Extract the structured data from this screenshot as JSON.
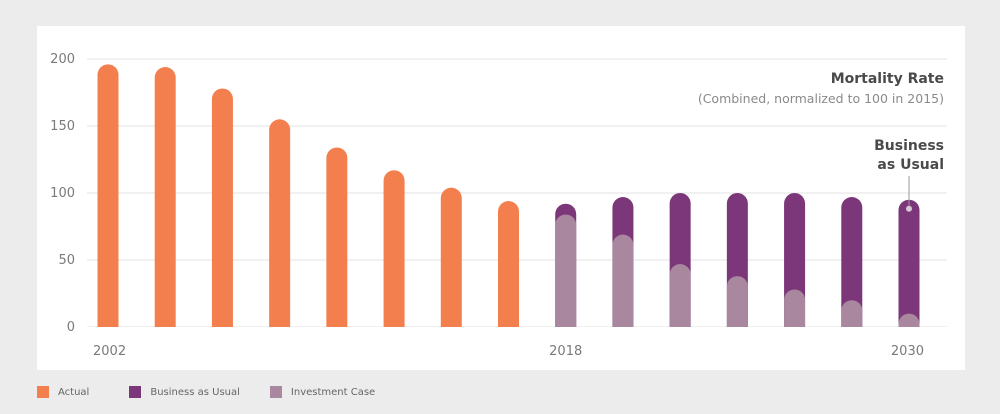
{
  "colors": {
    "actual": "#f47f4e",
    "business_as_usual": "#7b3779",
    "investment_case": "#a9879f",
    "grid": "#e3e3e3",
    "background": "#ececec",
    "card": "#ffffff"
  },
  "chart_data": {
    "type": "bar",
    "title": "Mortality Rate",
    "subtitle": "(Combined, normalized to 100 in 2015)",
    "xlabel": "",
    "ylabel": "",
    "ylim": [
      0,
      200
    ],
    "yticks": [
      0,
      50,
      100,
      150,
      200
    ],
    "x_tick_labels": [
      {
        "index": 0,
        "label": "2002"
      },
      {
        "index": 8,
        "label": "2018"
      },
      {
        "index": 14,
        "label": "2030"
      }
    ],
    "grid": true,
    "legend_position": "bottom-left",
    "series": [
      {
        "name": "Actual",
        "values": [
          196,
          194,
          178,
          155,
          134,
          117,
          104,
          94,
          null,
          null,
          null,
          null,
          null,
          null,
          null
        ]
      },
      {
        "name": "Business as Usual",
        "values": [
          null,
          null,
          null,
          null,
          null,
          null,
          null,
          null,
          92,
          97,
          100,
          100,
          100,
          97,
          95
        ]
      },
      {
        "name": "Investment Case",
        "values": [
          null,
          null,
          null,
          null,
          null,
          null,
          null,
          null,
          84,
          69,
          47,
          38,
          28,
          20,
          10
        ]
      }
    ],
    "annotation": {
      "lines": [
        "Business",
        "as Usual"
      ],
      "index": 14
    }
  },
  "legend": [
    {
      "label": "Actual",
      "color_key": "actual"
    },
    {
      "label": "Business as Usual",
      "color_key": "business_as_usual"
    },
    {
      "label": "Investment Case",
      "color_key": "investment_case"
    }
  ]
}
